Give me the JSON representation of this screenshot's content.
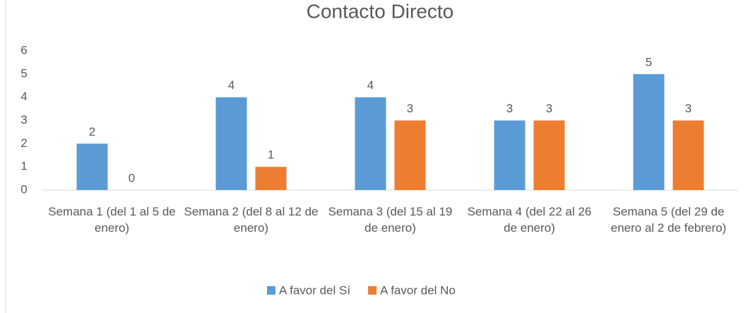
{
  "chart_data": {
    "type": "bar",
    "title": "Contacto Directo",
    "categories": [
      "Semana 1 (del 1 al 5 de enero)",
      "Semana 2 (del 8 al 12 de enero)",
      "Semana 3 (del 15 al 19 de enero)",
      "Semana 4 (del 22 al 26 de enero)",
      "Semana 5 (del 29 de enero al 2 de febrero)"
    ],
    "series": [
      {
        "name": "A favor del Sí",
        "color": "#5b9bd5",
        "values": [
          2,
          4,
          4,
          3,
          5
        ]
      },
      {
        "name": "A favor del No",
        "color": "#ed7d31",
        "values": [
          0,
          1,
          3,
          3,
          3
        ]
      }
    ],
    "ylim": [
      0,
      6
    ],
    "yticks": [
      0,
      1,
      2,
      3,
      4,
      5,
      6
    ],
    "grid": false,
    "legend": "bottom"
  }
}
